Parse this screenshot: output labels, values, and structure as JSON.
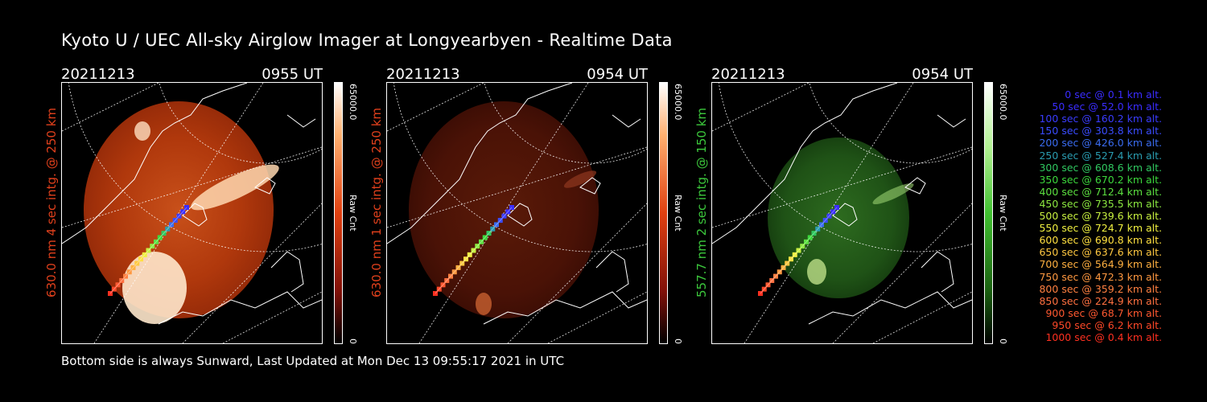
{
  "title": "Kyoto U / UEC All-sky Airglow Imager at Longyearbyen - Realtime Data",
  "footer": "Bottom side is always Sunward, Last Updated at Mon Dec 13 09:55:17 2021 in UTC",
  "panels": [
    {
      "date": "20211213",
      "time": "0955 UT",
      "side_label": "630.0 nm 4 sec intg. @ 250 km",
      "side_color": "#e0401c",
      "cbar_max": "65000.0",
      "cbar_mid": "Raw Cnt",
      "cbar_min": "0",
      "palette": "red",
      "brightness": "bright"
    },
    {
      "date": "20211213",
      "time": "0954 UT",
      "side_label": "630.0 nm 1 sec intg. @ 250 km",
      "side_color": "#e0401c",
      "cbar_max": "65000.0",
      "cbar_mid": "Raw Cnt",
      "cbar_min": "0",
      "palette": "red",
      "brightness": "dim"
    },
    {
      "date": "20211213",
      "time": "0954 UT",
      "side_label": "557.7 nm 2 sec intg. @ 150 km",
      "side_color": "#3cc83c",
      "cbar_max": "65000.0",
      "cbar_mid": "Raw Cnt",
      "cbar_min": "0",
      "palette": "green",
      "brightness": "dim"
    }
  ],
  "legend": [
    {
      "text": "0 sec @    0.1 km alt.",
      "color": "#3a2cff"
    },
    {
      "text": "50 sec @   52.0 km alt.",
      "color": "#3a2cff"
    },
    {
      "text": "100 sec @  160.2 km alt.",
      "color": "#3a3cff"
    },
    {
      "text": "150 sec @  303.8 km alt.",
      "color": "#3a4cff"
    },
    {
      "text": "200 sec @  426.0 km alt.",
      "color": "#3a6cf0"
    },
    {
      "text": "250 sec @  527.4 km alt.",
      "color": "#2a9cb0"
    },
    {
      "text": "300 sec @  608.6 km alt.",
      "color": "#30c860"
    },
    {
      "text": "350 sec @  670.2 km alt.",
      "color": "#3cd83c"
    },
    {
      "text": "400 sec @  712.4 km alt.",
      "color": "#5ce040"
    },
    {
      "text": "450 sec @  735.5 km alt.",
      "color": "#8ce840"
    },
    {
      "text": "500 sec @  739.6 km alt.",
      "color": "#c8f040"
    },
    {
      "text": "550 sec @  724.7 km alt.",
      "color": "#f0f040"
    },
    {
      "text": "600 sec @  690.8 km alt.",
      "color": "#ffe040"
    },
    {
      "text": "650 sec @  637.6 km alt.",
      "color": "#ffc840"
    },
    {
      "text": "700 sec @  564.9 km alt.",
      "color": "#ffb040"
    },
    {
      "text": "750 sec @  472.3 km alt.",
      "color": "#ff9840"
    },
    {
      "text": "800 sec @  359.2 km alt.",
      "color": "#ff8040"
    },
    {
      "text": "850 sec @  224.9 km alt.",
      "color": "#ff7040"
    },
    {
      "text": "900 sec @   68.7 km alt.",
      "color": "#ff5830"
    },
    {
      "text": "950 sec @    6.2 km alt.",
      "color": "#ff4828"
    },
    {
      "text": "1000 sec @    0.4 km alt.",
      "color": "#ff3020"
    }
  ]
}
